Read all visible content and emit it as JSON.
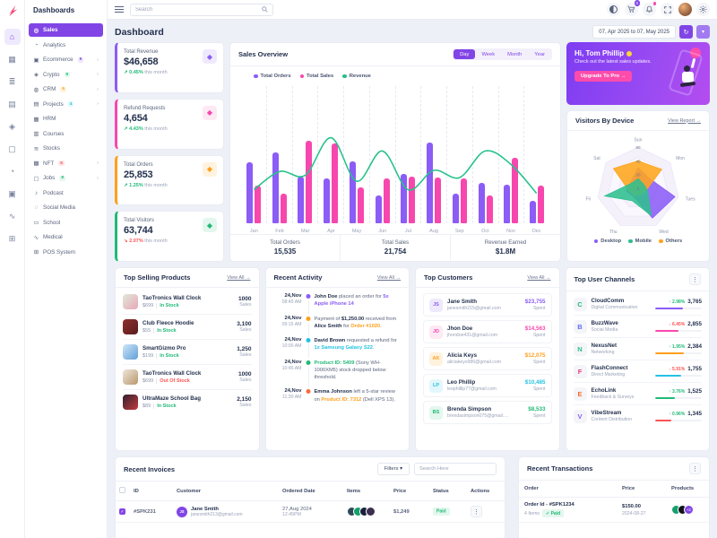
{
  "colors": {
    "primary": "#8145e6",
    "purple": "#8b5cf6",
    "pink": "#f747ae",
    "green": "#21ba77",
    "teal_line": "#27c28a",
    "orange": "#ff9f1c",
    "cyan": "#25c2e3",
    "red": "#fb5454"
  },
  "sidebar": {
    "header": "Dashboards",
    "rail": [
      {
        "name": "home-icon",
        "g": "⌂",
        "active": true
      },
      {
        "name": "apps-icon",
        "g": "▦"
      },
      {
        "name": "layers-icon",
        "g": "≣"
      },
      {
        "name": "pages-icon",
        "g": "▤"
      },
      {
        "name": "components-icon",
        "g": "◈"
      },
      {
        "name": "briefcase-icon",
        "g": "▢"
      },
      {
        "name": "clock-icon",
        "g": "◔"
      },
      {
        "name": "media-icon",
        "g": "▣"
      },
      {
        "name": "chart-icon",
        "g": "∿"
      },
      {
        "name": "table-icon",
        "g": "⊞"
      }
    ],
    "items": [
      {
        "label": "Sales",
        "icon": "◎",
        "active": true
      },
      {
        "label": "Analytics",
        "icon": "◔"
      },
      {
        "label": "Ecommerce",
        "icon": "▣",
        "badge": "9",
        "badge_color": "#8145e6",
        "badge_bg": "#efe9fd",
        "chevron": "›"
      },
      {
        "label": "Crypto",
        "icon": "◈",
        "badge": "6",
        "badge_color": "#21ba77",
        "badge_bg": "#e3f7ee",
        "chevron": "›"
      },
      {
        "label": "CRM",
        "icon": "◍",
        "badge": "5",
        "badge_color": "#ff9f1c",
        "badge_bg": "#fff2de",
        "chevron": "›"
      },
      {
        "label": "Projects",
        "icon": "▤",
        "badge": "4",
        "badge_color": "#25c2e3",
        "badge_bg": "#e2f7fc",
        "chevron": "›"
      },
      {
        "label": "HRM",
        "icon": "▦"
      },
      {
        "label": "Courses",
        "icon": "▥"
      },
      {
        "label": "Stocks",
        "icon": "≋"
      },
      {
        "label": "NFT",
        "icon": "▩",
        "badge": "6",
        "badge_color": "#fb5454",
        "badge_bg": "#fee7e7",
        "chevron": "›"
      },
      {
        "label": "Jobs",
        "icon": "▢",
        "badge": "8",
        "badge_color": "#21ba77",
        "badge_bg": "#e3f7ee",
        "chevron": "›"
      },
      {
        "label": "Podcast",
        "icon": "♪"
      },
      {
        "label": "Social Media",
        "icon": "◌"
      },
      {
        "label": "School",
        "icon": "▭"
      },
      {
        "label": "Medical",
        "icon": "∿"
      },
      {
        "label": "POS System",
        "icon": "⊞"
      }
    ]
  },
  "topbar": {
    "search_placeholder": "Search",
    "cart_badge": "0"
  },
  "page": {
    "title": "Dashboard",
    "date_range": "07, Apr 2025 to 07, May 2025",
    "refresh_glyph": "↻",
    "caret_glyph": "▾"
  },
  "stats": [
    {
      "label": "Total Revenue",
      "value": "$46,658",
      "delta": "0.45%",
      "arrow": "↗",
      "delta_color": "#21ba77",
      "note": "this month",
      "color": "#8b5cf6",
      "icon_bg": "#efe9fd"
    },
    {
      "label": "Refund Requests",
      "value": "4,654",
      "delta": "4.43%",
      "arrow": "↗",
      "delta_color": "#21ba77",
      "note": "this month",
      "color": "#f747ae",
      "icon_bg": "#fde9f4"
    },
    {
      "label": "Total Orders",
      "value": "25,853",
      "delta": "1.25%",
      "arrow": "↗",
      "delta_color": "#21ba77",
      "note": "this month",
      "color": "#ff9f1c",
      "icon_bg": "#fff2de"
    },
    {
      "label": "Total Visitors",
      "value": "63,744",
      "delta": "2.07%",
      "arrow": "↘",
      "delta_color": "#fb5454",
      "note": "this month",
      "color": "#21ba77",
      "icon_bg": "#e3f7ee"
    }
  ],
  "sales_overview": {
    "title": "Sales Overview",
    "tabs": [
      {
        "label": "Day",
        "active": true
      },
      {
        "label": "Week"
      },
      {
        "label": "Month"
      },
      {
        "label": "Year"
      }
    ],
    "chart_data": {
      "type": "bar",
      "categories": [
        "Jan",
        "Feb",
        "Mar",
        "Apr",
        "May",
        "Jun",
        "Jul",
        "Aug",
        "Sep",
        "Oct",
        "Nov",
        "Dec"
      ],
      "series": [
        {
          "name": "Total Orders",
          "type": "bar",
          "color": "#8b5cf6",
          "values": [
            65,
            76,
            50,
            48,
            66,
            30,
            53,
            87,
            32,
            43,
            41,
            24
          ]
        },
        {
          "name": "Total Sales",
          "type": "bar",
          "color": "#f747ae",
          "values": [
            40,
            32,
            88,
            86,
            38,
            48,
            50,
            49,
            48,
            30,
            70,
            40
          ]
        },
        {
          "name": "Revenue",
          "type": "line",
          "color": "#27c28a",
          "values": [
            22,
            37,
            34,
            65,
            29,
            54,
            22,
            38,
            32,
            54,
            43,
            19
          ]
        }
      ],
      "ylim": [
        0,
        100
      ],
      "grid": "dashed-vertical",
      "legend_position": "top-left"
    },
    "footer": [
      {
        "label": "Total Orders",
        "value": "15,535"
      },
      {
        "label": "Total Sales",
        "value": "21,754"
      },
      {
        "label": "Revenue Earned",
        "value": "$1.8M"
      }
    ]
  },
  "promo": {
    "greeting": "Hi, Tom Phillip",
    "emoji": "👋",
    "text": "Check out the latest sales updates.",
    "button": "Upgrade To Pro →"
  },
  "visitors": {
    "title": "Visitors By Device",
    "link": "View Report →",
    "chart_data": {
      "type": "radar",
      "axes": [
        "Sun",
        "Mon",
        "Tues",
        "Wed",
        "Thu",
        "Fri",
        "Sat"
      ],
      "ticks": [
        0,
        20,
        40,
        60
      ],
      "max": 60,
      "series": [
        {
          "name": "Desktop",
          "color": "#8b5cf6",
          "values": [
            30,
            22,
            55,
            48,
            14,
            18,
            14
          ]
        },
        {
          "name": "Others",
          "color": "#ffa51c",
          "values": [
            40,
            44,
            12,
            10,
            12,
            14,
            46
          ]
        },
        {
          "name": "Mobile",
          "color": "#2fbf8f",
          "values": [
            14,
            10,
            14,
            44,
            20,
            50,
            12
          ]
        }
      ],
      "legend": [
        "Desktop",
        "Mobile",
        "Others"
      ],
      "legend_colors": [
        "#8b5cf6",
        "#2fbf8f",
        "#ffa51c"
      ]
    }
  },
  "products": {
    "title": "Top Selling Products",
    "view_all": "View All →",
    "items": [
      {
        "name": "TaoTronics Wall Clock",
        "price": "$699",
        "status": "In Stock",
        "status_color": "#21ba77",
        "sales": "1000",
        "sales_label": "Sales",
        "img1": "#dfe9d8",
        "img2": "#e8a7b7"
      },
      {
        "name": "Club Fleece Hoodie",
        "price": "$55",
        "status": "In Stock",
        "status_color": "#21ba77",
        "sales": "3,100",
        "sales_label": "Sales",
        "img1": "#8e2f2f",
        "img2": "#5a1d1d"
      },
      {
        "name": "SmartGizmo Pro",
        "price": "$199",
        "status": "In Stock",
        "status_color": "#21ba77",
        "sales": "1,250",
        "sales_label": "Sales",
        "img1": "#cfe6f7",
        "img2": "#5f9fd8"
      },
      {
        "name": "TaoTronics Wall Clock",
        "price": "$699",
        "status": "Out Of Stock",
        "status_color": "#fb5454",
        "sales": "1000",
        "sales_label": "Sales",
        "img1": "#efe6da",
        "img2": "#b9986d"
      },
      {
        "name": "UltraMaze School Bag",
        "price": "$89",
        "status": "In Stock",
        "status_color": "#21ba77",
        "sales": "2,150",
        "sales_label": "Sales",
        "img1": "#31202e",
        "img2": "#c23b3b"
      }
    ]
  },
  "activity": {
    "title": "Recent Activity",
    "view_all": "View All →",
    "items": [
      {
        "date": "24,Nov",
        "time": "08:45 AM",
        "dot": "#8b5cf6",
        "segments": [
          {
            "t": "John Doe",
            "b": true
          },
          {
            "t": " placed an order for "
          },
          {
            "t": "5x Apple iPhone 14",
            "c": "#8b5cf6"
          }
        ]
      },
      {
        "date": "24,Nov",
        "time": "09:15 AM",
        "dot": "#ff9f1c",
        "segments": [
          {
            "t": "Payment of "
          },
          {
            "t": "$1,250.00",
            "b": true
          },
          {
            "t": " received from "
          },
          {
            "t": "Alice Smith",
            "b": true
          },
          {
            "t": " for "
          },
          {
            "t": "Order #1020",
            "c": "#ff9f1c"
          },
          {
            "t": "."
          }
        ]
      },
      {
        "date": "24,Nov",
        "time": "10:00 AM",
        "dot": "#25c2e3",
        "segments": [
          {
            "t": "David Brown",
            "b": true
          },
          {
            "t": " requested a refund for "
          },
          {
            "t": "1x Samsung Galaxy S22",
            "c": "#25c2e3"
          },
          {
            "t": "."
          }
        ]
      },
      {
        "date": "24,Nov",
        "time": "10:45 AM",
        "dot": "#21ba77",
        "segments": [
          {
            "t": "Product ID: 5409",
            "c": "#21ba77"
          },
          {
            "t": " (Sony WH-1000XM5) stock dropped below threshold."
          }
        ]
      },
      {
        "date": "24,Nov",
        "time": "11:30 AM",
        "dot": "#fb6b40",
        "segments": [
          {
            "t": "Emma Johnson",
            "b": true
          },
          {
            "t": " left a 5-star review on "
          },
          {
            "t": "Product ID: 7312",
            "c": "#ff9f1c"
          },
          {
            "t": " (Dell XPS 13)."
          }
        ]
      }
    ]
  },
  "customers": {
    "title": "Top Customers",
    "view_all": "View All →",
    "items": [
      {
        "initials": "JS",
        "color": "#8b5cf6",
        "bg": "#efe9fd",
        "name": "Jane Smith",
        "email": "janesmith215@gmail.com",
        "amount": "$23,755",
        "spent": "Spent"
      },
      {
        "initials": "JD",
        "color": "#f747ae",
        "bg": "#fde9f4",
        "name": "Jhon Doe",
        "email": "jhondoe431@gmail.com",
        "amount": "$14,563",
        "spent": "Spent"
      },
      {
        "initials": "AK",
        "color": "#ff9f1c",
        "bg": "#fff2de",
        "name": "Alicia Keys",
        "email": "aliciakeys986@gmail.com",
        "amount": "$12,075",
        "spent": "Spent"
      },
      {
        "initials": "LP",
        "color": "#25c2e3",
        "bg": "#e2f7fc",
        "name": "Leo Phillip",
        "email": "leophillip77@gmail.com",
        "amount": "$10,485",
        "spent": "Spent"
      },
      {
        "initials": "BS",
        "color": "#21ba77",
        "bg": "#e3f7ee",
        "name": "Brenda Simpson",
        "email": "brendasimpson075@gmail.com",
        "amount": "$8,533",
        "spent": "Spent"
      }
    ]
  },
  "channels": {
    "title": "Top User Channels",
    "items": [
      {
        "name": "CloudComm",
        "sub": "Digital Communication",
        "delta": "↑ 2.98%",
        "delta_color": "#21ba77",
        "value": "3,765",
        "bar": "#8b5cf6",
        "pct": 60,
        "letter": "C",
        "letter_color": "#21ba77"
      },
      {
        "name": "BuzzWave",
        "sub": "Social Media",
        "delta": "↓ 6.45%",
        "delta_color": "#fb5454",
        "value": "2,855",
        "bar": "#f747ae",
        "pct": 50,
        "letter": "B",
        "letter_color": "#5f6df0"
      },
      {
        "name": "NexusNet",
        "sub": "Networking",
        "delta": "↑ 1.95%",
        "delta_color": "#21ba77",
        "value": "2,384",
        "bar": "#ff9f1c",
        "pct": 62,
        "letter": "N",
        "letter_color": "#2fbf8f"
      },
      {
        "name": "FlashConnect",
        "sub": "Direct Marketing",
        "delta": "↓ 5.91%",
        "delta_color": "#fb5454",
        "value": "1,755",
        "bar": "#25c2e3",
        "pct": 55,
        "letter": "F",
        "letter_color": "#e0407c"
      },
      {
        "name": "EchoLink",
        "sub": "Feedback & Surveys",
        "delta": "↑ 3.76%",
        "delta_color": "#21ba77",
        "value": "1,525",
        "bar": "#21ba77",
        "pct": 42,
        "letter": "E",
        "letter_color": "#ff6a2c"
      },
      {
        "name": "VibeStream",
        "sub": "Content Distribution",
        "delta": "↑ 0.96%",
        "delta_color": "#21ba77",
        "value": "1,345",
        "bar": "#fb5454",
        "pct": 35,
        "letter": "V",
        "letter_color": "#8b5cf6"
      }
    ]
  },
  "invoices": {
    "title": "Recent Invoices",
    "filters_label": "Filters ▾",
    "search_placeholder": "Search Here",
    "headers": [
      "ID",
      "Customer",
      "Ordered Date",
      "Items",
      "Price",
      "Status",
      "Actions"
    ],
    "rows": [
      {
        "id": "#SPK231",
        "avatar": "JS",
        "name": "Jane Smith",
        "email": "janesmith213@gmail.com",
        "date": "27,Aug 2024",
        "time": "12:45PM",
        "price": "$1,249",
        "status": "Paid",
        "actions": "⋮",
        "item_colors": [
          "#2f4858",
          "#14a06c",
          "#1b1f3b"
        ]
      }
    ]
  },
  "transactions": {
    "title": "Recent Transactions",
    "headers": [
      "Order",
      "Price",
      "Products"
    ],
    "rows": [
      {
        "order": "Order Id - #SPK1234",
        "items": "4 Items",
        "status": "✓ Paid",
        "price": "$150.00",
        "date": "2024-08-27",
        "extra": "+2",
        "item_colors": [
          "#14a06c",
          "#101418"
        ]
      }
    ]
  }
}
